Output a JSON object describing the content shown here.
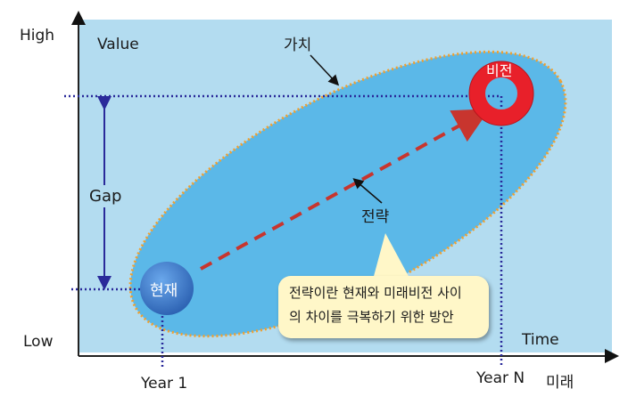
{
  "axis": {
    "y_high": "High",
    "y_low": "Low",
    "x_time": "Time",
    "x_start": "Year 1",
    "x_end": "Year N",
    "x_future": "미래"
  },
  "labels": {
    "value": "Value",
    "value_kr": "가치",
    "gap": "Gap",
    "strategy": "전략",
    "vision": "비전",
    "current": "현재"
  },
  "callout": {
    "line1": "전략이란 현재와 미래비전 사이",
    "line2": "의 차이를 극복하기 위한 방안"
  },
  "colors": {
    "background": "#b3dcf0",
    "ellipse": "#5bb8e8",
    "ellipse_border": "#f0a030",
    "vision": "#e8202a",
    "current": "#3a78c8",
    "arrow": "#c8352e",
    "guides": "#2a2a9a"
  }
}
